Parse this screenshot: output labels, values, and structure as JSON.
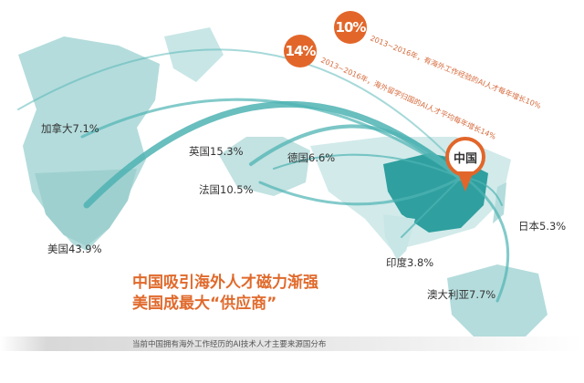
{
  "colors": {
    "accent": "#e2662a",
    "land": "#b4dcdc",
    "china": "#2f9f9f",
    "arc": "#4fb3b3"
  },
  "headline": {
    "line1": "中国吸引海外人才磁力渐强",
    "line2": "美国成最大“供应商”"
  },
  "caption": "当前中国拥有海外工作经历的AI技术人才主要来源国分布",
  "stats": [
    {
      "badge": "10%",
      "note": "2013~2016年，有海外工作经验的AI人才每年增长10%"
    },
    {
      "badge": "14%",
      "note": "2013~2016年，海外留学归国的AI人才平均每年增长14%"
    }
  ],
  "destination": "中国",
  "countries": [
    {
      "name": "美国43.9%"
    },
    {
      "name": "加拿大7.1%"
    },
    {
      "name": "英国15.3%"
    },
    {
      "name": "德国6.6%"
    },
    {
      "name": "法国10.5%"
    },
    {
      "name": "日本5.3%"
    },
    {
      "name": "印度3.8%"
    },
    {
      "name": "澳大利亚7.7%"
    }
  ]
}
